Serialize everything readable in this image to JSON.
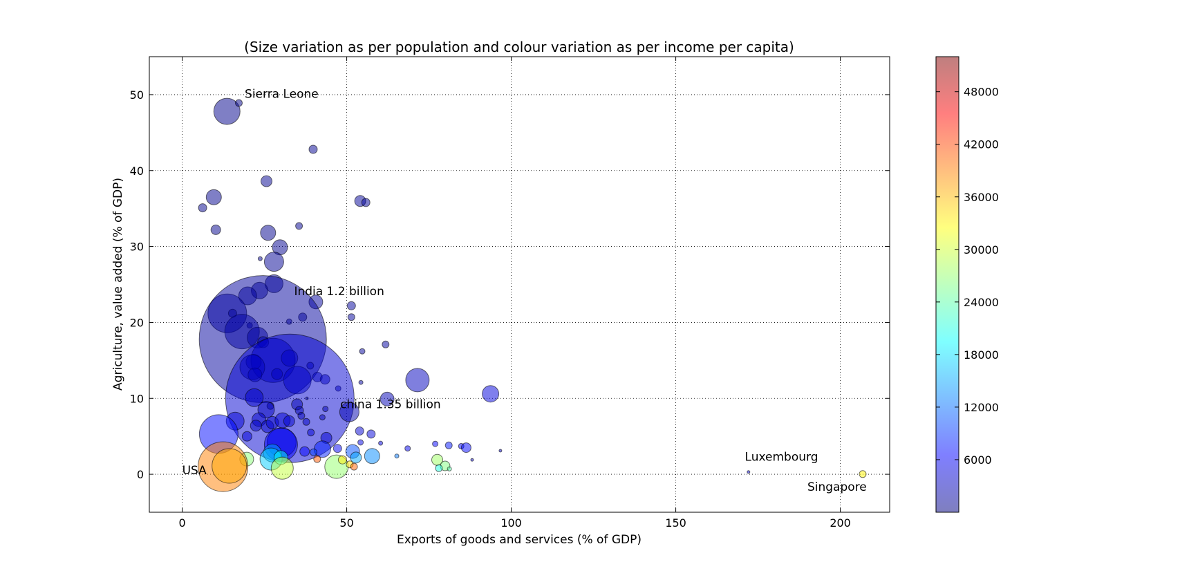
{
  "chart_data": {
    "type": "scatter",
    "title": "(Size variation as per population and colour variation as per income per capita)",
    "xlabel": "Exports of goods and services (% of GDP)",
    "ylabel": "Agriculture, value added (% of GDP)",
    "xlim": [
      -10,
      215
    ],
    "ylim": [
      -5,
      55
    ],
    "xticks": [
      "0",
      "50",
      "100",
      "150",
      "200"
    ],
    "yticks": [
      "0",
      "10",
      "20",
      "30",
      "40",
      "50"
    ],
    "grid": true,
    "colorbar": {
      "min": 0,
      "max": 52000,
      "colormap": "jet",
      "ticks": [
        "6000",
        "12000",
        "18000",
        "24000",
        "30000",
        "36000",
        "42000",
        "48000"
      ]
    },
    "annotations": [
      {
        "text": "Sierra Leone",
        "x": 19,
        "y": 49.6
      },
      {
        "text": "India 1.2 billion",
        "x": 34,
        "y": 23.6
      },
      {
        "text": "china 1.35 billion",
        "x": 48,
        "y": 8.7
      },
      {
        "text": "USA",
        "x": 0,
        "y": 0
      },
      {
        "text": "Luxembourg",
        "x": 171,
        "y": 1.8
      },
      {
        "text": "Singapore",
        "x": 190,
        "y": -2.2
      }
    ],
    "points": [
      {
        "x": 13.6,
        "y": 47.8,
        "r": 19,
        "c": 600
      },
      {
        "x": 17.2,
        "y": 48.9,
        "r": 5,
        "c": 500
      },
      {
        "x": 39.8,
        "y": 42.8,
        "r": 6,
        "c": 900
      },
      {
        "x": 25.6,
        "y": 38.6,
        "r": 8,
        "c": 800
      },
      {
        "x": 9.6,
        "y": 36.5,
        "r": 11,
        "c": 700
      },
      {
        "x": 6.2,
        "y": 35.1,
        "r": 6,
        "c": 600
      },
      {
        "x": 54.1,
        "y": 36.0,
        "r": 8,
        "c": 1200
      },
      {
        "x": 55.8,
        "y": 35.8,
        "r": 6,
        "c": 1100
      },
      {
        "x": 10.2,
        "y": 32.2,
        "r": 7,
        "c": 600
      },
      {
        "x": 26.1,
        "y": 31.8,
        "r": 11,
        "c": 700
      },
      {
        "x": 35.5,
        "y": 32.7,
        "r": 5,
        "c": 900
      },
      {
        "x": 29.7,
        "y": 29.9,
        "r": 11,
        "c": 800
      },
      {
        "x": 23.7,
        "y": 28.4,
        "r": 3,
        "c": 800
      },
      {
        "x": 27.9,
        "y": 28.0,
        "r": 14,
        "c": 1000
      },
      {
        "x": 27.9,
        "y": 25.1,
        "r": 13,
        "c": 1000
      },
      {
        "x": 23.5,
        "y": 24.2,
        "r": 12,
        "c": 1200
      },
      {
        "x": 19.9,
        "y": 23.5,
        "r": 13,
        "c": 1300
      },
      {
        "x": 40.6,
        "y": 22.7,
        "r": 10,
        "c": 1500
      },
      {
        "x": 51.4,
        "y": 22.2,
        "r": 6,
        "c": 1400
      },
      {
        "x": 51.4,
        "y": 20.7,
        "r": 5,
        "c": 1400
      },
      {
        "x": 13.7,
        "y": 21.2,
        "r": 28,
        "c": 1800
      },
      {
        "x": 15.3,
        "y": 21.2,
        "r": 6,
        "c": 1500
      },
      {
        "x": 36.6,
        "y": 20.7,
        "r": 6,
        "c": 1300
      },
      {
        "x": 32.5,
        "y": 20.1,
        "r": 4,
        "c": 1300
      },
      {
        "x": 20.5,
        "y": 19.6,
        "r": 4,
        "c": 1300
      },
      {
        "x": 18.2,
        "y": 18.8,
        "r": 25,
        "c": 2200
      },
      {
        "x": 22.9,
        "y": 18.0,
        "r": 15,
        "c": 2000
      },
      {
        "x": 24.5,
        "y": 17.8,
        "r": 92,
        "c": 1500
      },
      {
        "x": 24.6,
        "y": 17.4,
        "r": 8,
        "c": 2300
      },
      {
        "x": 54.7,
        "y": 16.2,
        "r": 4,
        "c": 1400
      },
      {
        "x": 61.8,
        "y": 17.1,
        "r": 5,
        "c": 1600
      },
      {
        "x": 27.6,
        "y": 15.0,
        "r": 32,
        "c": 3000
      },
      {
        "x": 32.6,
        "y": 15.3,
        "r": 12,
        "c": 2800
      },
      {
        "x": 21.7,
        "y": 14.8,
        "r": 11,
        "c": 2200
      },
      {
        "x": 21.3,
        "y": 14.1,
        "r": 18,
        "c": 2600
      },
      {
        "x": 22.1,
        "y": 13.1,
        "r": 10,
        "c": 2500
      },
      {
        "x": 28.8,
        "y": 13.2,
        "r": 8,
        "c": 2300
      },
      {
        "x": 35.0,
        "y": 12.4,
        "r": 20,
        "c": 3500
      },
      {
        "x": 38.9,
        "y": 14.3,
        "r": 5,
        "c": 2500
      },
      {
        "x": 41.1,
        "y": 12.8,
        "r": 7,
        "c": 2700
      },
      {
        "x": 43.4,
        "y": 12.5,
        "r": 7,
        "c": 2800
      },
      {
        "x": 71.5,
        "y": 12.4,
        "r": 17,
        "c": 3200
      },
      {
        "x": 93.7,
        "y": 10.6,
        "r": 12,
        "c": 4700
      },
      {
        "x": 54.3,
        "y": 12.1,
        "r": 3,
        "c": 1800
      },
      {
        "x": 47.4,
        "y": 11.3,
        "r": 4,
        "c": 2600
      },
      {
        "x": 32.7,
        "y": 10.0,
        "r": 93,
        "c": 4200
      },
      {
        "x": 21.9,
        "y": 10.1,
        "r": 13,
        "c": 3700
      },
      {
        "x": 37.9,
        "y": 10.0,
        "r": 2,
        "c": 2000
      },
      {
        "x": 62.3,
        "y": 9.9,
        "r": 10,
        "c": 2800
      },
      {
        "x": 34.9,
        "y": 9.2,
        "r": 8,
        "c": 2500
      },
      {
        "x": 26.8,
        "y": 9.0,
        "r": 5,
        "c": 2300
      },
      {
        "x": 50.8,
        "y": 8.2,
        "r": 14,
        "c": 2400
      },
      {
        "x": 25.5,
        "y": 8.5,
        "r": 12,
        "c": 3200
      },
      {
        "x": 35.6,
        "y": 8.4,
        "r": 6,
        "c": 2700
      },
      {
        "x": 43.5,
        "y": 8.6,
        "r": 4,
        "c": 2700
      },
      {
        "x": 36.2,
        "y": 7.7,
        "r": 5,
        "c": 2900
      },
      {
        "x": 42.6,
        "y": 7.5,
        "r": 4,
        "c": 2600
      },
      {
        "x": 16.1,
        "y": 7.0,
        "r": 13,
        "c": 4300
      },
      {
        "x": 23.3,
        "y": 7.2,
        "r": 10,
        "c": 3700
      },
      {
        "x": 25.9,
        "y": 6.3,
        "r": 9,
        "c": 3700
      },
      {
        "x": 22.4,
        "y": 6.4,
        "r": 8,
        "c": 3400
      },
      {
        "x": 27.4,
        "y": 6.8,
        "r": 9,
        "c": 3900
      },
      {
        "x": 30.5,
        "y": 7.1,
        "r": 11,
        "c": 4300
      },
      {
        "x": 32.5,
        "y": 7.0,
        "r": 8,
        "c": 3900
      },
      {
        "x": 37.7,
        "y": 6.9,
        "r": 5,
        "c": 3400
      },
      {
        "x": 11.1,
        "y": 5.3,
        "r": 28,
        "c": 7000
      },
      {
        "x": 19.7,
        "y": 5.0,
        "r": 7,
        "c": 4500
      },
      {
        "x": 39.1,
        "y": 5.5,
        "r": 5,
        "c": 4200
      },
      {
        "x": 43.8,
        "y": 4.8,
        "r": 8,
        "c": 4100
      },
      {
        "x": 53.9,
        "y": 5.7,
        "r": 6,
        "c": 4200
      },
      {
        "x": 57.4,
        "y": 5.3,
        "r": 6,
        "c": 4600
      },
      {
        "x": 54.2,
        "y": 4.2,
        "r": 4,
        "c": 5000
      },
      {
        "x": 60.3,
        "y": 4.1,
        "r": 3,
        "c": 5200
      },
      {
        "x": 30.2,
        "y": 4.2,
        "r": 21,
        "c": 4400
      },
      {
        "x": 30.0,
        "y": 3.9,
        "r": 24,
        "c": 6200
      },
      {
        "x": 42.6,
        "y": 3.3,
        "r": 12,
        "c": 8000
      },
      {
        "x": 37.2,
        "y": 3.0,
        "r": 7,
        "c": 6400
      },
      {
        "x": 39.9,
        "y": 2.9,
        "r": 5,
        "c": 9500
      },
      {
        "x": 47.2,
        "y": 3.4,
        "r": 6,
        "c": 6000
      },
      {
        "x": 51.8,
        "y": 3.0,
        "r": 10,
        "c": 10500
      },
      {
        "x": 57.7,
        "y": 2.4,
        "r": 11,
        "c": 13500
      },
      {
        "x": 52.8,
        "y": 2.2,
        "r": 8,
        "c": 15000
      },
      {
        "x": 68.5,
        "y": 3.4,
        "r": 4,
        "c": 5500
      },
      {
        "x": 76.9,
        "y": 4.0,
        "r": 4,
        "c": 6500
      },
      {
        "x": 81.0,
        "y": 3.8,
        "r": 5,
        "c": 7500
      },
      {
        "x": 84.8,
        "y": 3.7,
        "r": 4,
        "c": 6500
      },
      {
        "x": 86.3,
        "y": 3.5,
        "r": 7,
        "c": 6800
      },
      {
        "x": 96.7,
        "y": 3.1,
        "r": 2,
        "c": 3000
      },
      {
        "x": 65.2,
        "y": 2.4,
        "r": 3,
        "c": 12500
      },
      {
        "x": 88.1,
        "y": 1.9,
        "r": 2,
        "c": 3000
      },
      {
        "x": 27.4,
        "y": 2.8,
        "r": 13,
        "c": 14800
      },
      {
        "x": 27.0,
        "y": 2.0,
        "r": 16,
        "c": 17000
      },
      {
        "x": 30.0,
        "y": 2.2,
        "r": 10,
        "c": 20000
      },
      {
        "x": 19.6,
        "y": 2.0,
        "r": 10,
        "c": 26500
      },
      {
        "x": 30.4,
        "y": 0.8,
        "r": 16,
        "c": 29500
      },
      {
        "x": 46.9,
        "y": 1.0,
        "r": 17,
        "c": 27000
      },
      {
        "x": 50.9,
        "y": 1.3,
        "r": 5,
        "c": 34000
      },
      {
        "x": 48.7,
        "y": 1.9,
        "r": 6,
        "c": 33500
      },
      {
        "x": 52.2,
        "y": 1.0,
        "r": 5,
        "c": 40500
      },
      {
        "x": 41.0,
        "y": 2.0,
        "r": 5,
        "c": 41000
      },
      {
        "x": 77.5,
        "y": 1.9,
        "r": 8,
        "c": 27500
      },
      {
        "x": 79.9,
        "y": 1.1,
        "r": 7,
        "c": 26000
      },
      {
        "x": 78.0,
        "y": 0.8,
        "r": 5,
        "c": 21000
      },
      {
        "x": 81.2,
        "y": 0.7,
        "r": 3,
        "c": 24000
      },
      {
        "x": 12.4,
        "y": 1.0,
        "r": 36,
        "c": 39000
      },
      {
        "x": 14.3,
        "y": 1.1,
        "r": 25,
        "c": 37000
      },
      {
        "x": 172.1,
        "y": 0.3,
        "r": 2,
        "c": 4000
      },
      {
        "x": 206.8,
        "y": 0.03,
        "r": 5,
        "c": 33000
      }
    ]
  }
}
